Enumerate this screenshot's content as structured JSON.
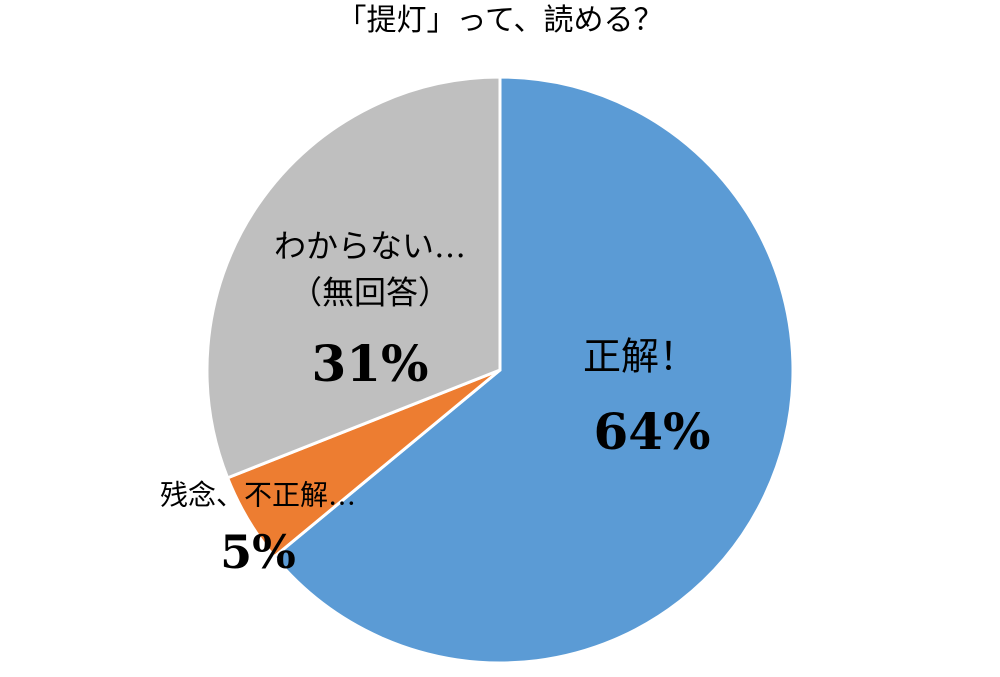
{
  "chart_data": {
    "type": "pie",
    "title": "「提灯」って、読める？",
    "categories": [
      "正解！",
      "残念、不正解…",
      "わからない…\n（無回答）"
    ],
    "values": [
      64,
      5,
      31
    ],
    "value_labels": [
      "64%",
      "5%",
      "31%"
    ],
    "colors": [
      "#5b9bd5",
      "#ed7d31",
      "#bfbfbf"
    ]
  }
}
